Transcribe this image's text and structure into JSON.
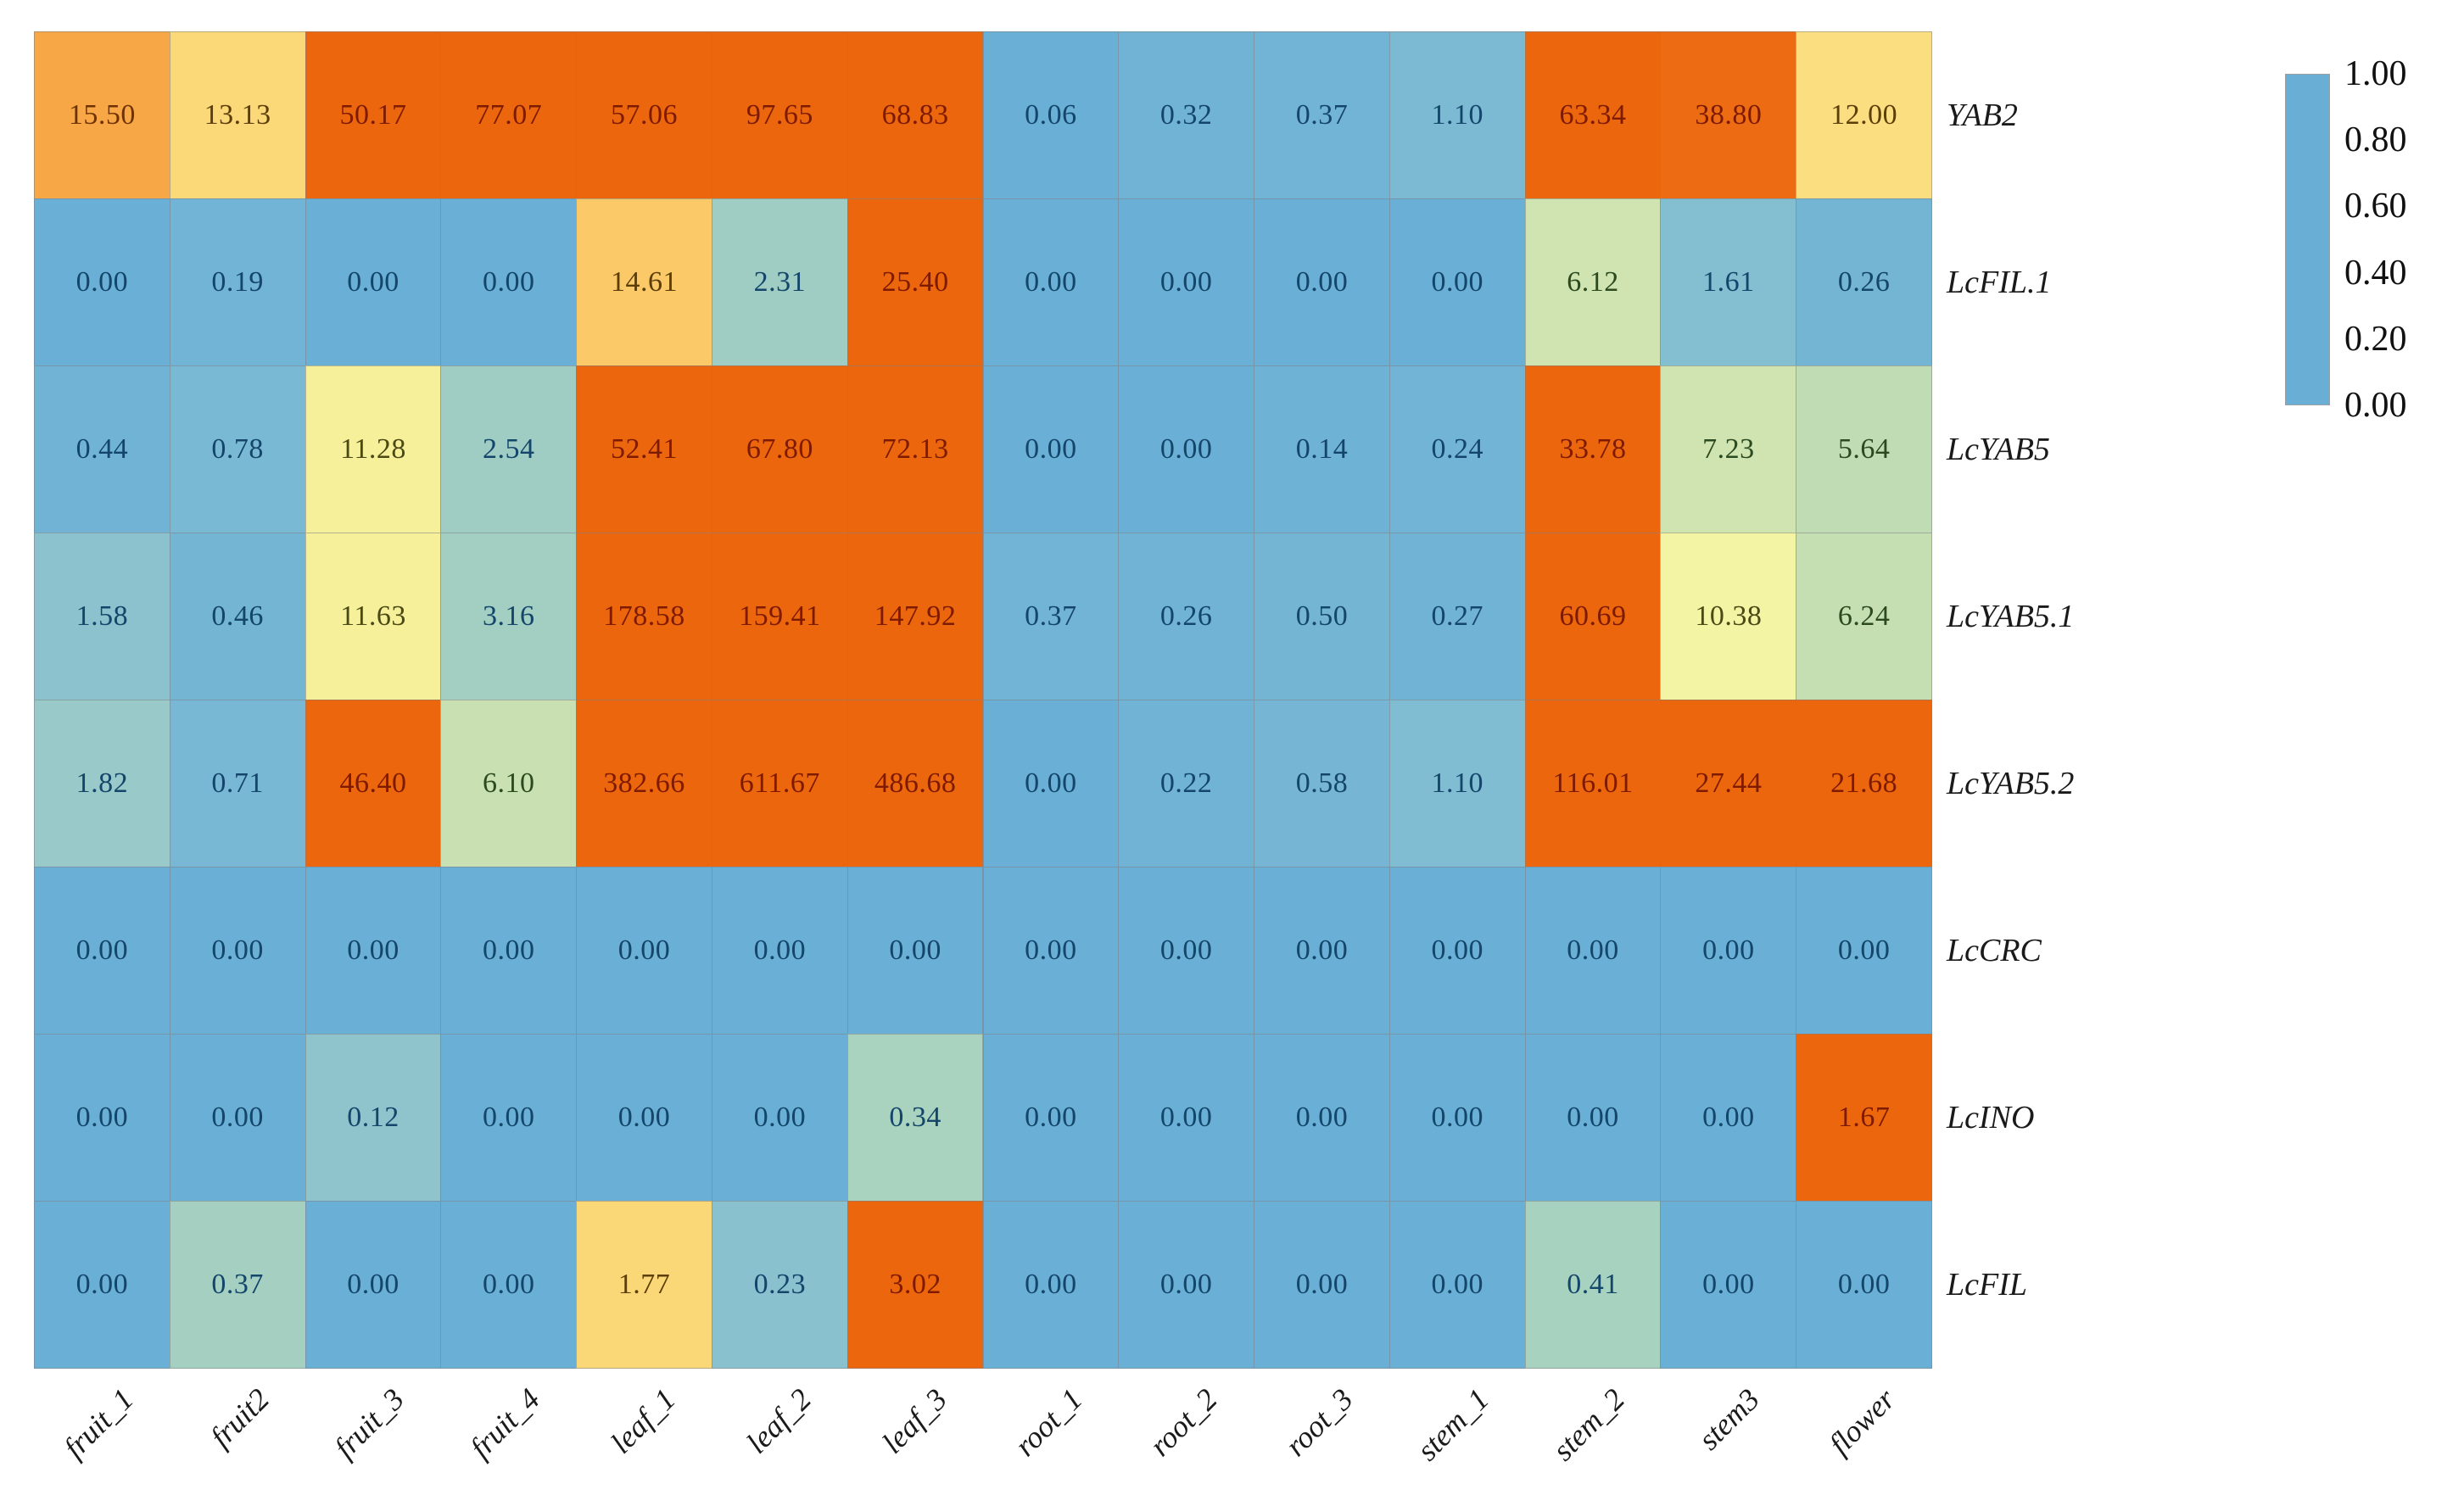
{
  "chart_data": {
    "type": "heatmap",
    "title": "",
    "xlabel": "",
    "ylabel": "",
    "grid": "on",
    "columns": [
      "fruit_1",
      "fruit2",
      "fruit_3",
      "fruit_4",
      "leaf_1",
      "leaf_2",
      "leaf_3",
      "root_1",
      "root_2",
      "root_3",
      "stem_1",
      "stem_2",
      "stem3",
      "flower"
    ],
    "rows": [
      "YAB2",
      "LcFIL.1",
      "LcYAB5",
      "LcYAB5.1",
      "LcYAB5.2",
      "LcCRC",
      "LcINO",
      "LcFIL"
    ],
    "values": [
      [
        15.5,
        13.13,
        50.17,
        77.07,
        57.06,
        97.65,
        68.83,
        0.06,
        0.32,
        0.37,
        1.1,
        63.34,
        38.8,
        12.0
      ],
      [
        0.0,
        0.19,
        0.0,
        0.0,
        14.61,
        2.31,
        25.4,
        0.0,
        0.0,
        0.0,
        0.0,
        6.12,
        1.61,
        0.26
      ],
      [
        0.44,
        0.78,
        11.28,
        2.54,
        52.41,
        67.8,
        72.13,
        0.0,
        0.0,
        0.14,
        0.24,
        33.78,
        7.23,
        5.64
      ],
      [
        1.58,
        0.46,
        11.63,
        3.16,
        178.58,
        159.41,
        147.92,
        0.37,
        0.26,
        0.5,
        0.27,
        60.69,
        10.38,
        6.24
      ],
      [
        1.82,
        0.71,
        46.4,
        6.1,
        382.66,
        611.67,
        486.68,
        0.0,
        0.22,
        0.58,
        1.1,
        116.01,
        27.44,
        21.68
      ],
      [
        0.0,
        0.0,
        0.0,
        0.0,
        0.0,
        0.0,
        0.0,
        0.0,
        0.0,
        0.0,
        0.0,
        0.0,
        0.0,
        0.0
      ],
      [
        0.0,
        0.0,
        0.12,
        0.0,
        0.0,
        0.0,
        0.34,
        0.0,
        0.0,
        0.0,
        0.0,
        0.0,
        0.0,
        1.67
      ],
      [
        0.0,
        0.37,
        0.0,
        0.0,
        1.77,
        0.23,
        3.02,
        0.0,
        0.0,
        0.0,
        0.0,
        0.41,
        0.0,
        0.0
      ]
    ],
    "color_norm": [
      [
        0.8,
        0.635,
        1,
        1,
        1,
        1,
        1,
        0.01,
        0.04,
        0.05,
        0.1,
        1,
        0.98,
        0.615
      ],
      [
        0.01,
        0.05,
        0.01,
        0.01,
        0.7,
        0.235,
        1,
        0.01,
        0.01,
        0.01,
        0.01,
        0.4,
        0.13,
        0.06
      ],
      [
        0.04,
        0.09,
        0.525,
        0.235,
        1,
        1,
        1,
        0.01,
        0.01,
        0.03,
        0.05,
        1,
        0.4,
        0.35
      ],
      [
        0.16,
        0.06,
        0.525,
        0.25,
        1,
        1,
        1,
        0.05,
        0.04,
        0.06,
        0.04,
        1,
        0.5,
        0.37
      ],
      [
        0.21,
        0.08,
        1,
        0.38,
        1,
        1,
        1,
        0.01,
        0.04,
        0.07,
        0.12,
        1,
        1,
        1
      ],
      [
        0.01,
        0.01,
        0.01,
        0.01,
        0.01,
        0.01,
        0.01,
        0.01,
        0.01,
        0.01,
        0.01,
        0.01,
        0.01,
        0.01
      ],
      [
        0.01,
        0.01,
        0.17,
        0.01,
        0.01,
        0.01,
        0.28,
        0.01,
        0.01,
        0.01,
        0.01,
        0.01,
        0.01,
        1
      ],
      [
        0.01,
        0.26,
        0.01,
        0.01,
        0.64,
        0.15,
        1,
        0.01,
        0.01,
        0.01,
        0.01,
        0.27,
        0.01,
        0.01
      ]
    ],
    "value_decimals": 2,
    "colormap_stops": [
      [
        0.0,
        "#68AED5"
      ],
      [
        0.1,
        "#7CBAD4"
      ],
      [
        0.2,
        "#97C8C9"
      ],
      [
        0.28,
        "#A9D3BE"
      ],
      [
        0.36,
        "#C2DDB3"
      ],
      [
        0.44,
        "#DCEAAD"
      ],
      [
        0.5,
        "#F4F5A4"
      ],
      [
        0.57,
        "#FAE88C"
      ],
      [
        0.64,
        "#FBD877"
      ],
      [
        0.71,
        "#FBC766"
      ],
      [
        0.8,
        "#F7A746"
      ],
      [
        0.9,
        "#F2852B"
      ],
      [
        1.0,
        "#EC660D"
      ]
    ],
    "legend": {
      "position": "right",
      "min": 0.0,
      "max": 1.0,
      "tick_labels": [
        "1.00",
        "0.80",
        "0.60",
        "0.40",
        "0.20",
        "0.00"
      ]
    }
  }
}
